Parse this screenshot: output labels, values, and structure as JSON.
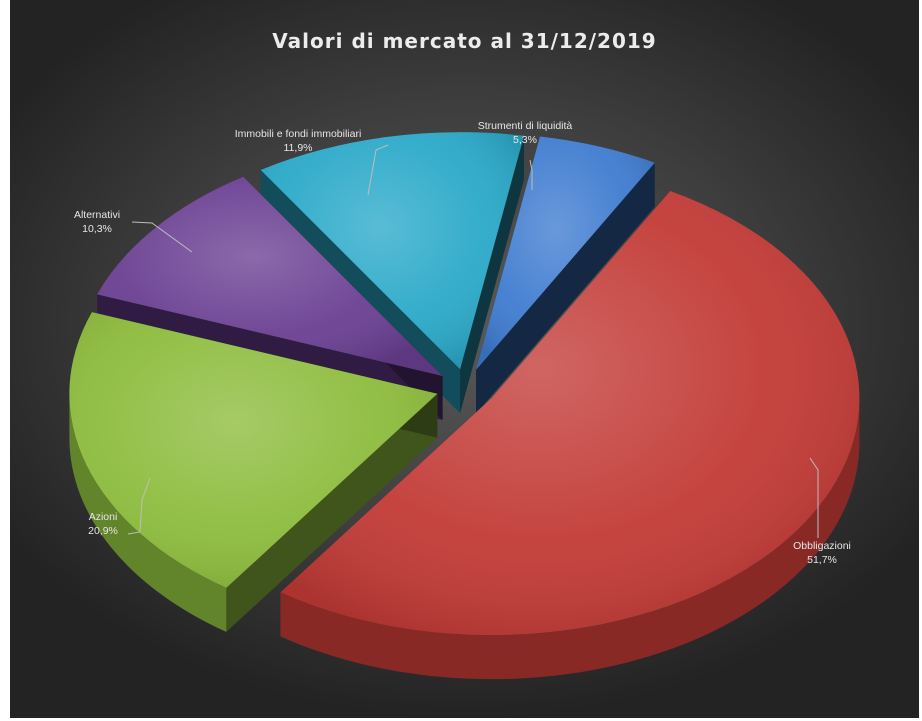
{
  "chart_data": {
    "type": "pie",
    "title": "Valori di mercato al 31/12/2019",
    "three_d": true,
    "exploded": true,
    "slices": [
      {
        "label": "Strumenti di liquidità",
        "pct_label": "5,3%",
        "value": 5.3,
        "color": "#3f7cd0"
      },
      {
        "label": "Obbligazioni",
        "pct_label": "51,7%",
        "value": 51.7,
        "color": "#c23a36"
      },
      {
        "label": "Azioni",
        "pct_label": "20,9%",
        "value": 20.9,
        "color": "#8cbc3c"
      },
      {
        "label": "Alternativi",
        "pct_label": "10,3%",
        "value": 10.3,
        "color": "#6a3f92"
      },
      {
        "label": "Immobili e fondi immobiliari",
        "pct_label": "11,9%",
        "value": 11.9,
        "color": "#2aa9c9"
      }
    ]
  }
}
